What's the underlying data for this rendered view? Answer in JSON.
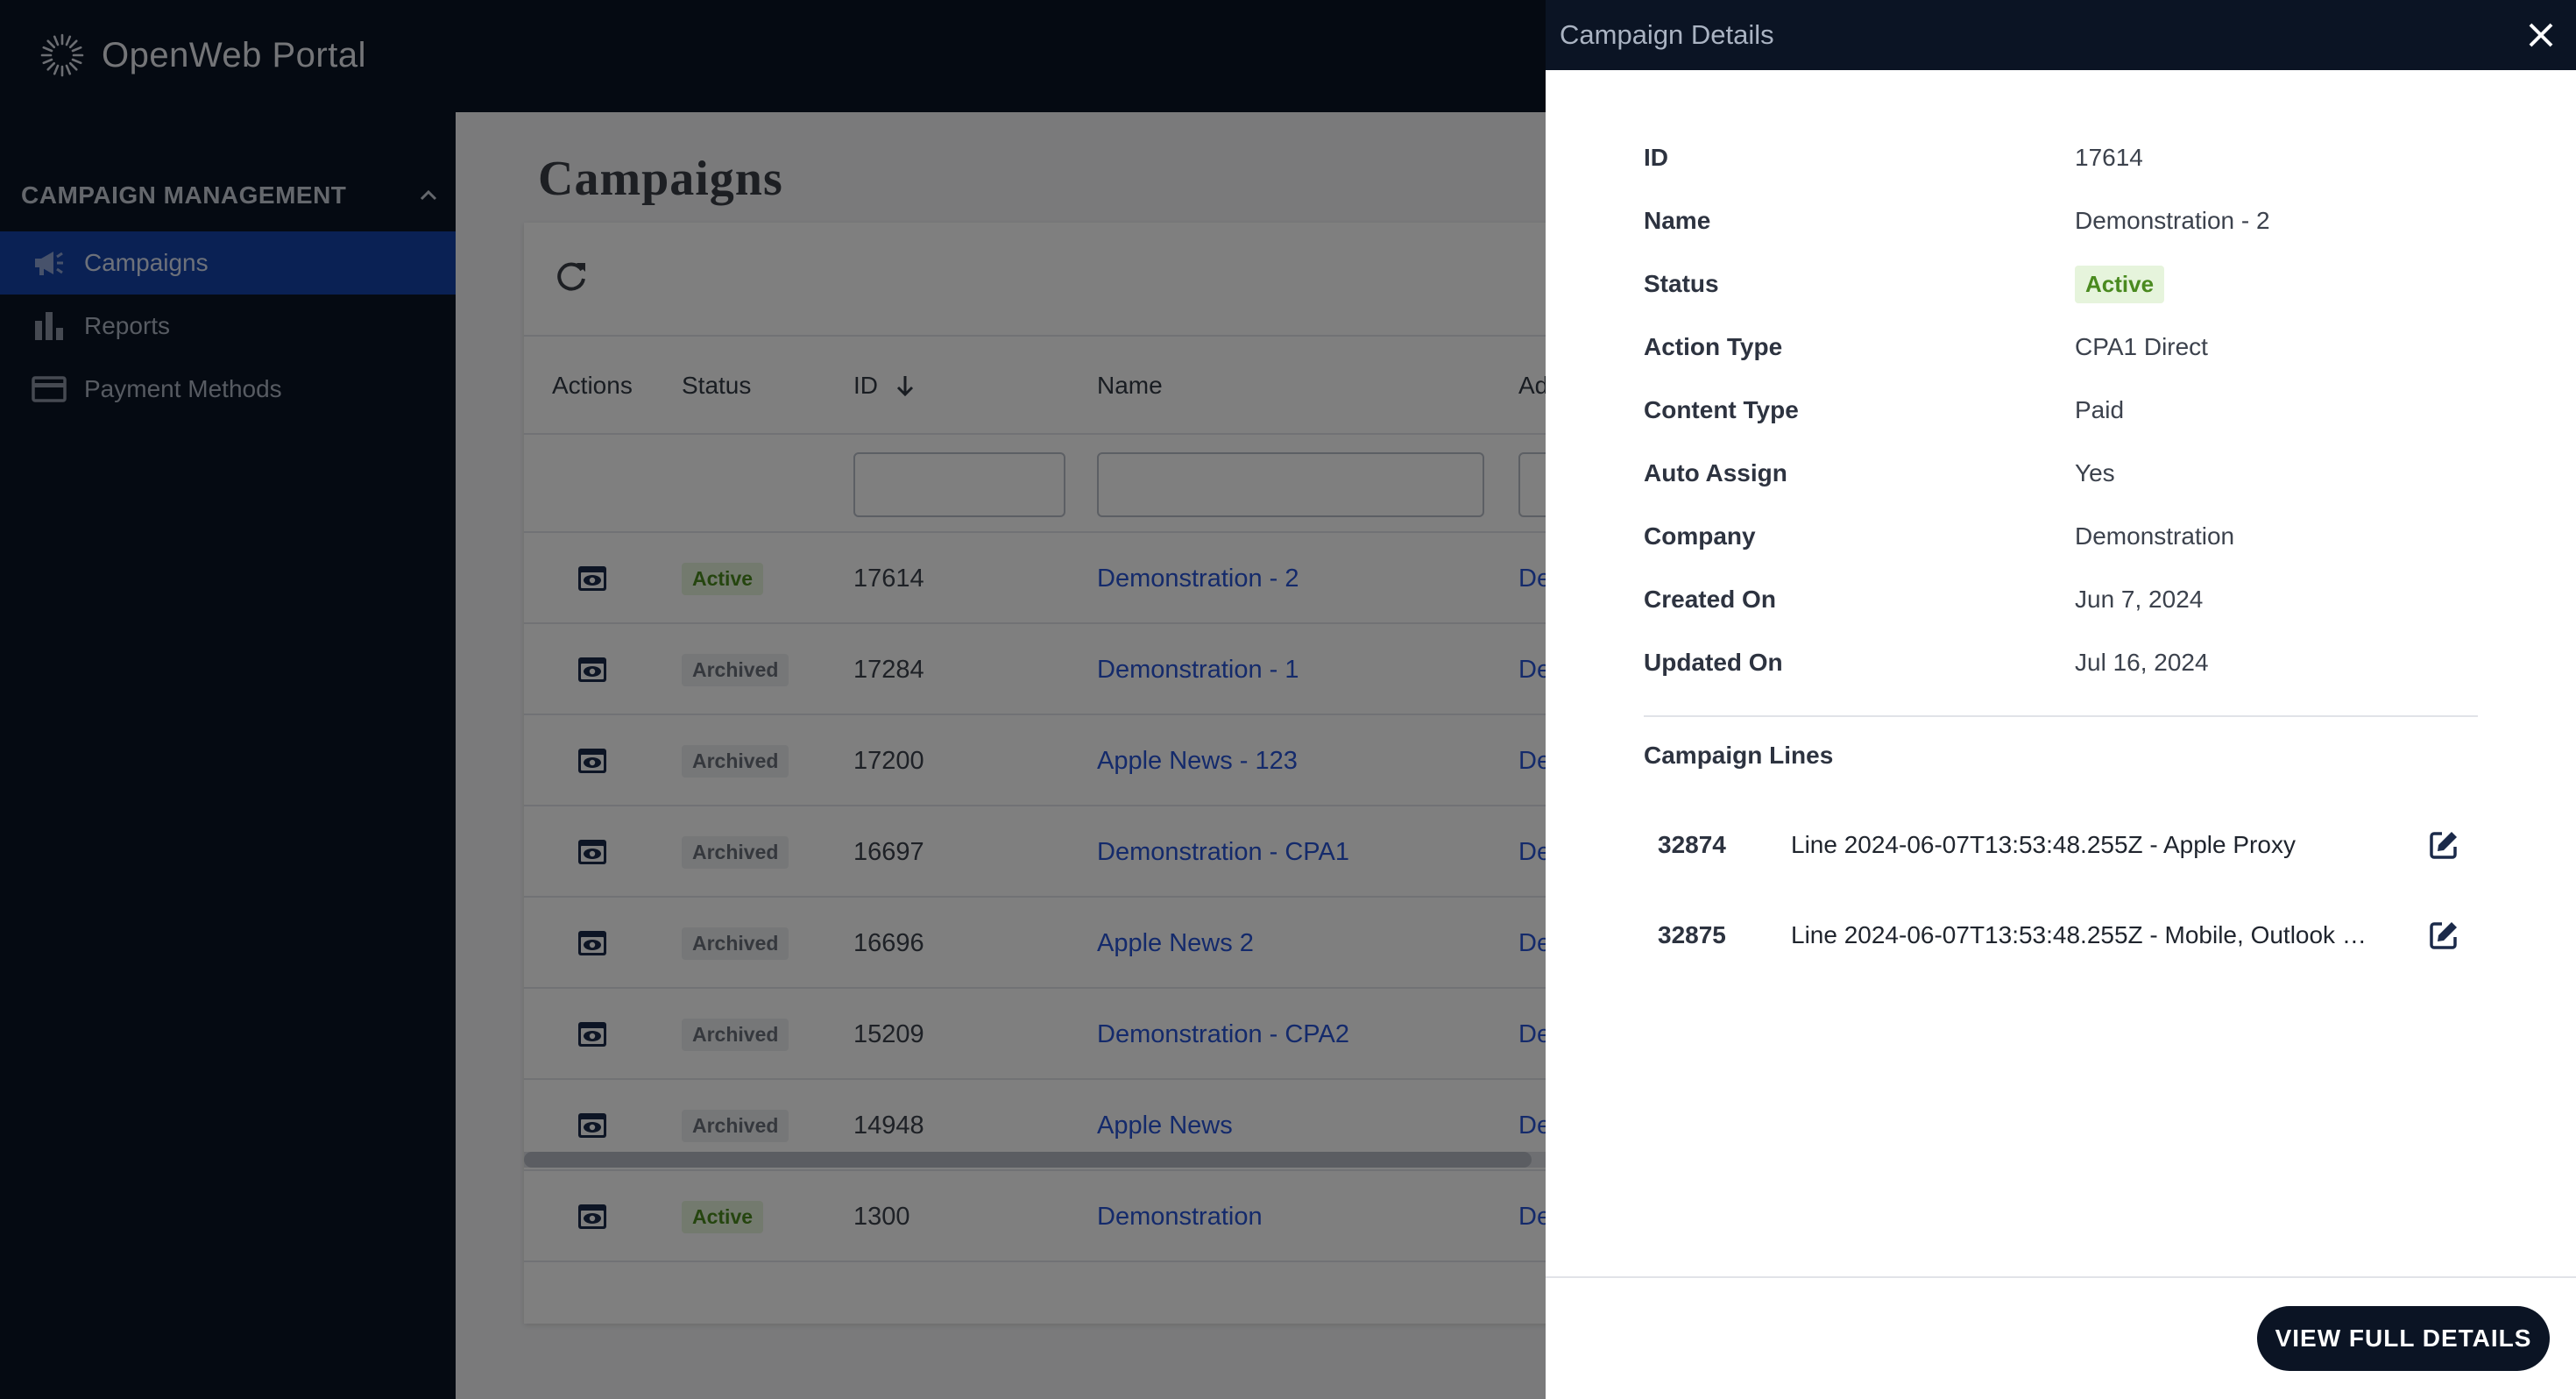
{
  "app": {
    "title": "OpenWeb Portal"
  },
  "sidebar": {
    "section_title": "CAMPAIGN MANAGEMENT",
    "items": [
      {
        "label": "Campaigns",
        "icon": "megaphone-icon",
        "active": true
      },
      {
        "label": "Reports",
        "icon": "bar-chart-icon",
        "active": false
      },
      {
        "label": "Payment Methods",
        "icon": "credit-card-icon",
        "active": false
      }
    ]
  },
  "main": {
    "page_title": "Campaigns",
    "table": {
      "columns": [
        "Actions",
        "Status",
        "ID",
        "Name",
        "Ad"
      ],
      "sort_indicator": "arrow-down-icon",
      "rows": [
        {
          "status": "Active",
          "id": "17614",
          "name": "Demonstration - 2",
          "ad": "De"
        },
        {
          "status": "Archived",
          "id": "17284",
          "name": "Demonstration - 1",
          "ad": "De"
        },
        {
          "status": "Archived",
          "id": "17200",
          "name": "Apple News - 123",
          "ad": "De"
        },
        {
          "status": "Archived",
          "id": "16697",
          "name": "Demonstration - CPA1",
          "ad": "De"
        },
        {
          "status": "Archived",
          "id": "16696",
          "name": "Apple News 2",
          "ad": "De"
        },
        {
          "status": "Archived",
          "id": "15209",
          "name": "Demonstration - CPA2",
          "ad": "De"
        },
        {
          "status": "Archived",
          "id": "14948",
          "name": "Apple News",
          "ad": "De"
        },
        {
          "status": "Active",
          "id": "1300",
          "name": "Demonstration",
          "ad": "De"
        }
      ]
    }
  },
  "drawer": {
    "title": "Campaign Details",
    "fields": [
      {
        "label": "ID",
        "value": "17614"
      },
      {
        "label": "Name",
        "value": "Demonstration - 2"
      },
      {
        "label": "Status",
        "value": "Active"
      },
      {
        "label": "Action Type",
        "value": "CPA1 Direct"
      },
      {
        "label": "Content Type",
        "value": "Paid"
      },
      {
        "label": "Auto Assign",
        "value": "Yes"
      },
      {
        "label": "Company",
        "value": "Demonstration"
      },
      {
        "label": "Created On",
        "value": "Jun 7, 2024"
      },
      {
        "label": "Updated On",
        "value": "Jul 16, 2024"
      }
    ],
    "lines_title": "Campaign Lines",
    "lines": [
      {
        "id": "32874",
        "name": "Line 2024-06-07T13:53:48.255Z - Apple Proxy"
      },
      {
        "id": "32875",
        "name": "Line 2024-06-07T13:53:48.255Z - Mobile, Outlook &..."
      }
    ],
    "full_details_button": "VIEW FULL DETAILS"
  },
  "colors": {
    "navy": "#0b1424",
    "active_nav": "#1542a8",
    "link": "#2855d6",
    "active_badge_bg": "#e6f4dc",
    "active_badge_text": "#4a8a1f"
  }
}
